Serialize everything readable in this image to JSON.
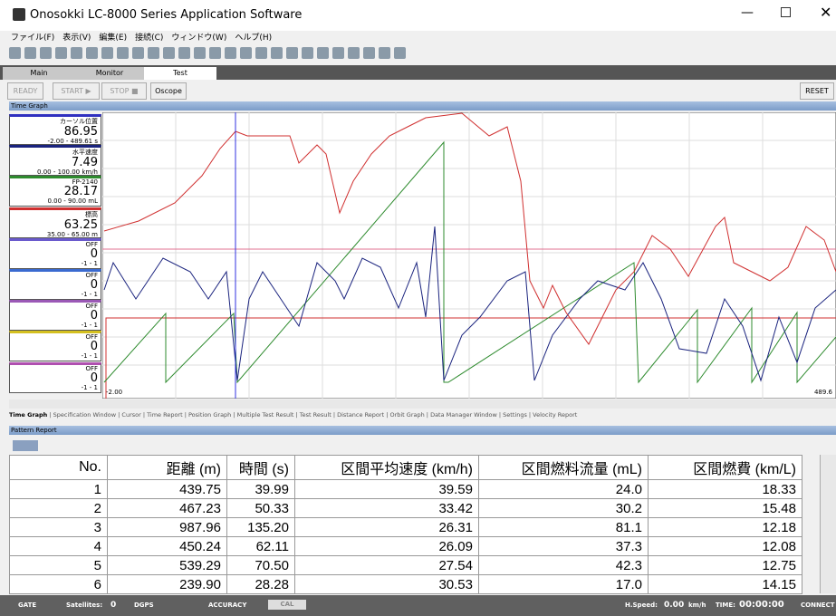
{
  "window": {
    "title": "Onosokki LC-8000 Series Application Software"
  },
  "menu": [
    "ファイル(F)",
    "表示(V)",
    "編集(E)",
    "接続(C)",
    "ウィンドウ(W)",
    "ヘルプ(H)"
  ],
  "tabs": [
    "Main",
    "Monitor",
    "Test"
  ],
  "buttons": {
    "ready": "READY",
    "start": "START ▶",
    "stop": "STOP ■",
    "oscope": "Oscope",
    "reset": "RESET"
  },
  "time_graph": {
    "header": "Time Graph",
    "channels": [
      {
        "name": "カーソル位置",
        "value": "86.95",
        "range": "-2.00 - 489.61 s",
        "color": "#3030c0"
      },
      {
        "name": "水平速度",
        "value": "7.49",
        "range": "0.00 - 100.00 km/h",
        "color": "#1a237e"
      },
      {
        "name": "FP-2140",
        "value": "28.17",
        "range": "0.00 - 90.00 mL",
        "color": "#2e8b2e"
      },
      {
        "name": "標高",
        "value": "63.25",
        "range": "35.00 - 65.00 m",
        "color": "#d03030"
      },
      {
        "name": "OFF",
        "value": "0",
        "range": "-1 - 1",
        "color": "#6a5acd"
      },
      {
        "name": "OFF",
        "value": "0",
        "range": "-1 - 1",
        "color": "#3a6ad0"
      },
      {
        "name": "OFF",
        "value": "0",
        "range": "-1 - 1",
        "color": "#9b59b6"
      },
      {
        "name": "OFF",
        "value": "0",
        "range": "-1 - 1",
        "color": "#d4c020"
      },
      {
        "name": "OFF",
        "value": "0",
        "range": "-1 - 1",
        "color": "#b050b0"
      }
    ],
    "x_start": "-2.00",
    "x_end": "489.6"
  },
  "bottom_tabs": [
    "Time Graph",
    "Specification Window",
    "Cursor",
    "Time Report",
    "Position Graph",
    "Multiple Test Result",
    "Test Result",
    "Distance Report",
    "Orbit Graph",
    "Data Manager Window",
    "Settings",
    "Velocity Report"
  ],
  "pattern_report": {
    "header": "Pattern Report",
    "table": {
      "columns": [
        "No.",
        "距離 (m)",
        "時間 (s)",
        "区間平均速度 (km/h)",
        "区間燃料流量 (mL)",
        "区間燃費 (km/L)"
      ],
      "rows": [
        [
          "1",
          "439.75",
          "39.99",
          "39.59",
          "24.0",
          "18.33"
        ],
        [
          "2",
          "467.23",
          "50.33",
          "33.42",
          "30.2",
          "15.48"
        ],
        [
          "3",
          "987.96",
          "135.20",
          "26.31",
          "81.1",
          "12.18"
        ],
        [
          "4",
          "450.24",
          "62.11",
          "26.09",
          "37.3",
          "12.08"
        ],
        [
          "5",
          "539.29",
          "70.50",
          "27.54",
          "42.3",
          "12.75"
        ],
        [
          "6",
          "239.90",
          "28.28",
          "30.53",
          "17.0",
          "14.15"
        ]
      ]
    }
  },
  "status": {
    "gate": "GATE",
    "satellites_label": "Satellites:",
    "satellites": "0",
    "dgps": "DGPS",
    "accuracy": "ACCURACY",
    "cal": "CAL",
    "hspeed_label": "H.Speed:",
    "hspeed": "0.00",
    "hspeed_unit": "km/h",
    "time_label": "TIME:",
    "time": "00:00:00",
    "connect": "CONNECT"
  }
}
